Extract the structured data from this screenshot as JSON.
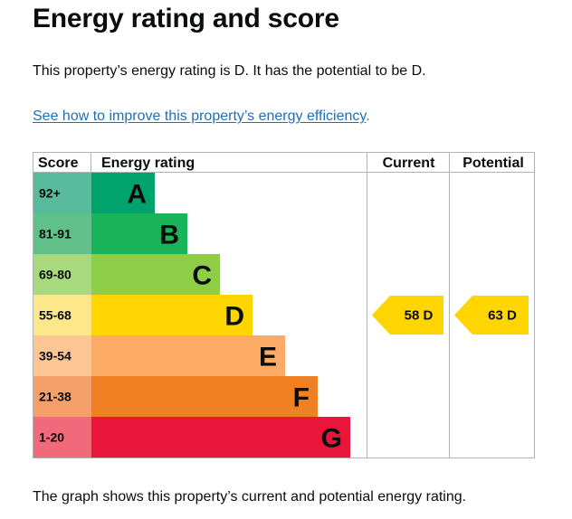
{
  "title": "Energy rating and score",
  "summary": "This property’s energy rating is D. It has the potential to be D.",
  "improve_link": "See how to improve this property’s energy efficiency",
  "improve_link_suffix": ".",
  "caption": "The graph shows this property’s current and potential energy rating.",
  "chart": {
    "headers": {
      "score": "Score",
      "rating": "Energy rating",
      "current": "Current",
      "potential": "Potential"
    },
    "bands": [
      {
        "score": "92+",
        "letter": "A",
        "color": "#57bb9c",
        "bar_color": "#00a36b"
      },
      {
        "score": "81-91",
        "letter": "B",
        "color": "#5fc189",
        "bar_color": "#19b459"
      },
      {
        "score": "69-80",
        "letter": "C",
        "color": "#a8d97f",
        "bar_color": "#8dce46"
      },
      {
        "score": "55-68",
        "letter": "D",
        "color": "#fce88a",
        "bar_color": "#ffd500"
      },
      {
        "score": "39-54",
        "letter": "E",
        "color": "#fdc594",
        "bar_color": "#fcaa65"
      },
      {
        "score": "21-38",
        "letter": "F",
        "color": "#f5a06a",
        "bar_color": "#ef8023"
      },
      {
        "score": "1-20",
        "letter": "G",
        "color": "#f06a7c",
        "bar_color": "#e9153b"
      }
    ],
    "current": {
      "value": 58,
      "letter": "D",
      "label": "58 D",
      "band_index": 3,
      "color": "#ffd500"
    },
    "potential": {
      "value": 63,
      "letter": "D",
      "label": "63 D",
      "band_index": 3,
      "color": "#ffd500"
    }
  }
}
